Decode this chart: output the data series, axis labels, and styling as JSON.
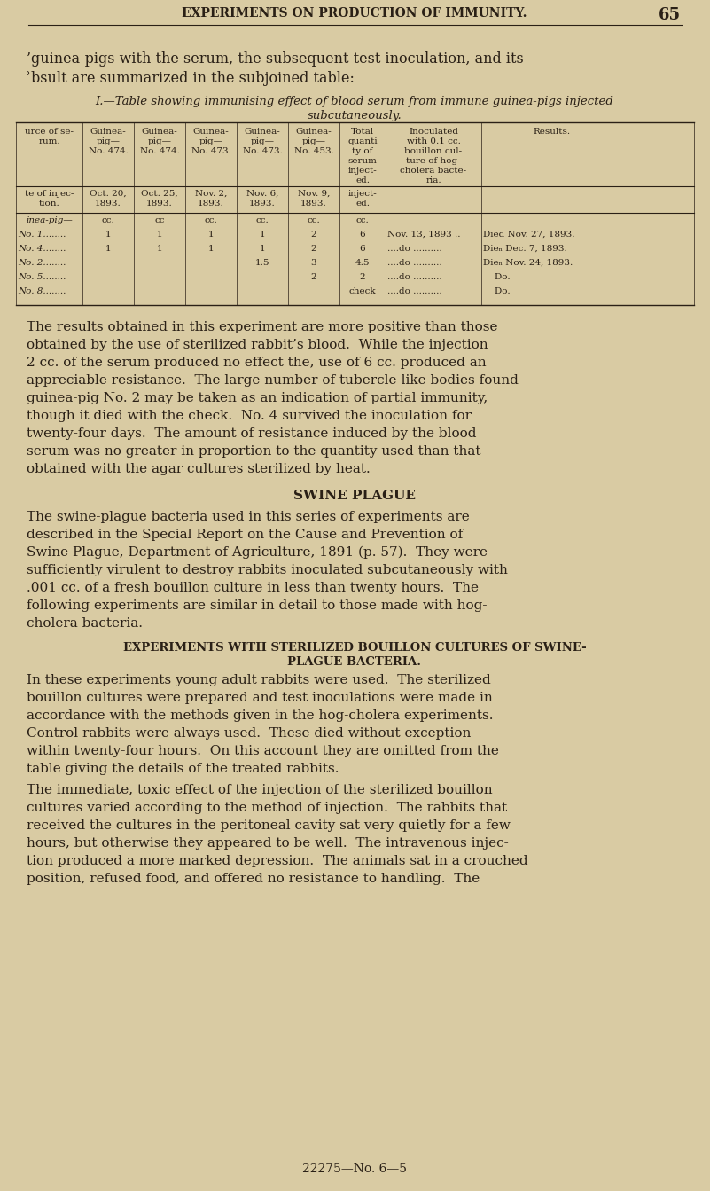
{
  "bg_color": "#d9cba3",
  "text_color": "#2a2016",
  "header_title": "EXPERIMENTS ON PRODUCTION OF IMMUNITY.",
  "page_num": "65",
  "intro_line1": "’guinea-pigs with the serum, the subsequent test inoculation, and its",
  "intro_line2": "ʾbsult are summarized in the subjoined table:",
  "table_caption": "I.—Table showing immunising effect of blood serum from immune guinea-pigs injected",
  "table_caption2": "subcutaneously.",
  "table_headers_row1": [
    "urce of se-\nrum.",
    "Guinea-\npig—\nNo. 474.",
    "Guinea-\npig—\nNo. 474.",
    "Guinea-\npig—\nNo. 473.",
    "Guinea-\npig—\nNo. 473.",
    "Guinea-\npig—\nNo. 453.",
    "Total\nquanti\nty of\nserum\ninject-\ned.",
    "Inoculated\nwith 0.1 cc.\nbouillon cul-\nture of hog-\ncholera bacte-\nria.",
    "Results."
  ],
  "table_headers_row2": [
    "te of injec-\ntion.",
    "Oct. 20,\n1893.",
    "Oct. 25,\n1893.",
    "Nov. 2,\n1893.",
    "Nov. 6,\n1893.",
    "Nov. 9,\n1893.",
    "inject-\ned.",
    "",
    ""
  ],
  "table_unit_row": [
    "inea-pig—",
    "cc.",
    "cc",
    "cc.",
    "cc.",
    "cc.",
    "cc.",
    "",
    ""
  ],
  "table_data": [
    [
      "No. 1........",
      "1",
      "1",
      "1",
      "1",
      "2",
      "6",
      "Nov. 13, 1893 ..",
      "Died Nov. 27, 1893."
    ],
    [
      "No. 4........",
      "1",
      "1",
      "1",
      "1",
      "2",
      "6",
      "....do ..........",
      "Dieₙ Dec. 7, 1893."
    ],
    [
      "No. 2........",
      "",
      "",
      "",
      "1.5",
      "3",
      "4.5",
      "....do ..........",
      "Dieₙ Nov. 24, 1893."
    ],
    [
      "No. 5........",
      "",
      "",
      "",
      "",
      "2",
      "2",
      "....do ..........",
      "    Do."
    ],
    [
      "No. 8........",
      "",
      "",
      "",
      "",
      "",
      "check",
      "....do ..........",
      "    Do."
    ]
  ],
  "para1_lines": [
    "The results obtained in this experiment are more positive than those",
    "obtained by the use of sterilized rabbit’s blood.  While the injection",
    "2 cc. of the serum produced no effect the, use of 6 cc. produced an",
    "appreciable resistance.  The large number of tubercle-like bodies found",
    "guinea-pig No. 2 may be taken as an indication of partial immunity,",
    "though it died with the check.  No. 4 survived the inoculation for",
    "twenty-four days.  The amount of resistance induced by the blood",
    "serum was no greater in proportion to the quantity used than that",
    "obtained with the agar cultures sterilized by heat."
  ],
  "section_head": "SWINE PLAGUE",
  "para2_lines": [
    "The swine-plague bacteria used in this series of experiments are",
    "described in the Special Report on the Cause and Prevention of",
    "Swine Plague, Department of Agriculture, 1891 (p. 57).  They were",
    "sufficiently virulent to destroy rabbits inoculated subcutaneously with",
    ".001 cc. of a fresh bouillon culture in less than twenty hours.  The",
    "following experiments are similar in detail to those made with hog-",
    "cholera bacteria."
  ],
  "subsection_head1": "EXPERIMENTS WITH STERILIZED BOUILLON CULTURES OF SWINE-",
  "subsection_head2": "PLAGUE BACTERIA.",
  "para3_lines": [
    "In these experiments young adult rabbits were used.  The sterilized",
    "bouillon cultures were prepared and test inoculations were made in",
    "accordance with the methods given in the hog-cholera experiments.",
    "Control rabbits were always used.  These died without exception",
    "within twenty-four hours.  On this account they are omitted from the",
    "table giving the details of the treated rabbits."
  ],
  "para4_lines": [
    "The immediate, toxic effect of the injection of the sterilized bouillon",
    "cultures varied according to the method of injection.  The rabbits that",
    "received the cultures in the peritoneal cavity sat very quietly for a few",
    "hours, but otherwise they appeared to be well.  The intravenous injec-",
    "tion produced a more marked depression.  The animals sat in a crouched",
    "position, refused food, and offered no resistance to handling.  The"
  ],
  "footer": "22275—No. 6—5"
}
